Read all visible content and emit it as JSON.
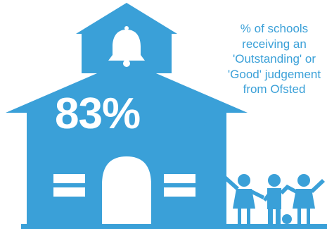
{
  "colors": {
    "primary": "#3aa0d8",
    "background": "#ffffff",
    "accent_tilde": "#3aa0d8"
  },
  "icons": [
    "school-house-icon",
    "bell-icon",
    "children-holding-hands-icon",
    "ball-icon",
    "tilde-icon"
  ],
  "stat": {
    "value": "83%"
  },
  "caption": {
    "lines": [
      "% of schools",
      "receiving an",
      "'Outstanding' or",
      "'Good' judgement",
      "from Ofsted"
    ]
  }
}
